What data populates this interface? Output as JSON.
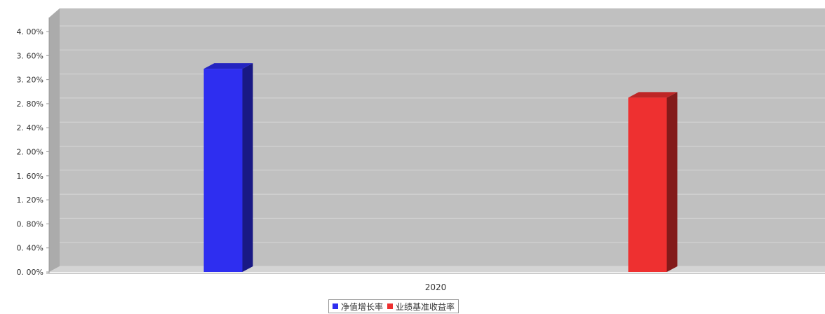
{
  "chart_data": {
    "type": "bar",
    "categories": [
      "2020"
    ],
    "series": [
      {
        "name": "净值增长率",
        "values": [
          3.38
        ],
        "color": "#2e2ef0"
      },
      {
        "name": "业绩基准收益率",
        "values": [
          2.9
        ],
        "color": "#ee3030"
      }
    ],
    "yticks": [
      "0. 00%",
      "0. 40%",
      "0. 80%",
      "1. 20%",
      "1. 60%",
      "2. 00%",
      "2. 40%",
      "2. 80%",
      "3. 20%",
      "3. 60%",
      "4. 00%"
    ],
    "ylim": [
      0,
      4.0
    ],
    "grid": true,
    "legend_position": "bottom-center",
    "plot_background": "#c0c0c0"
  }
}
